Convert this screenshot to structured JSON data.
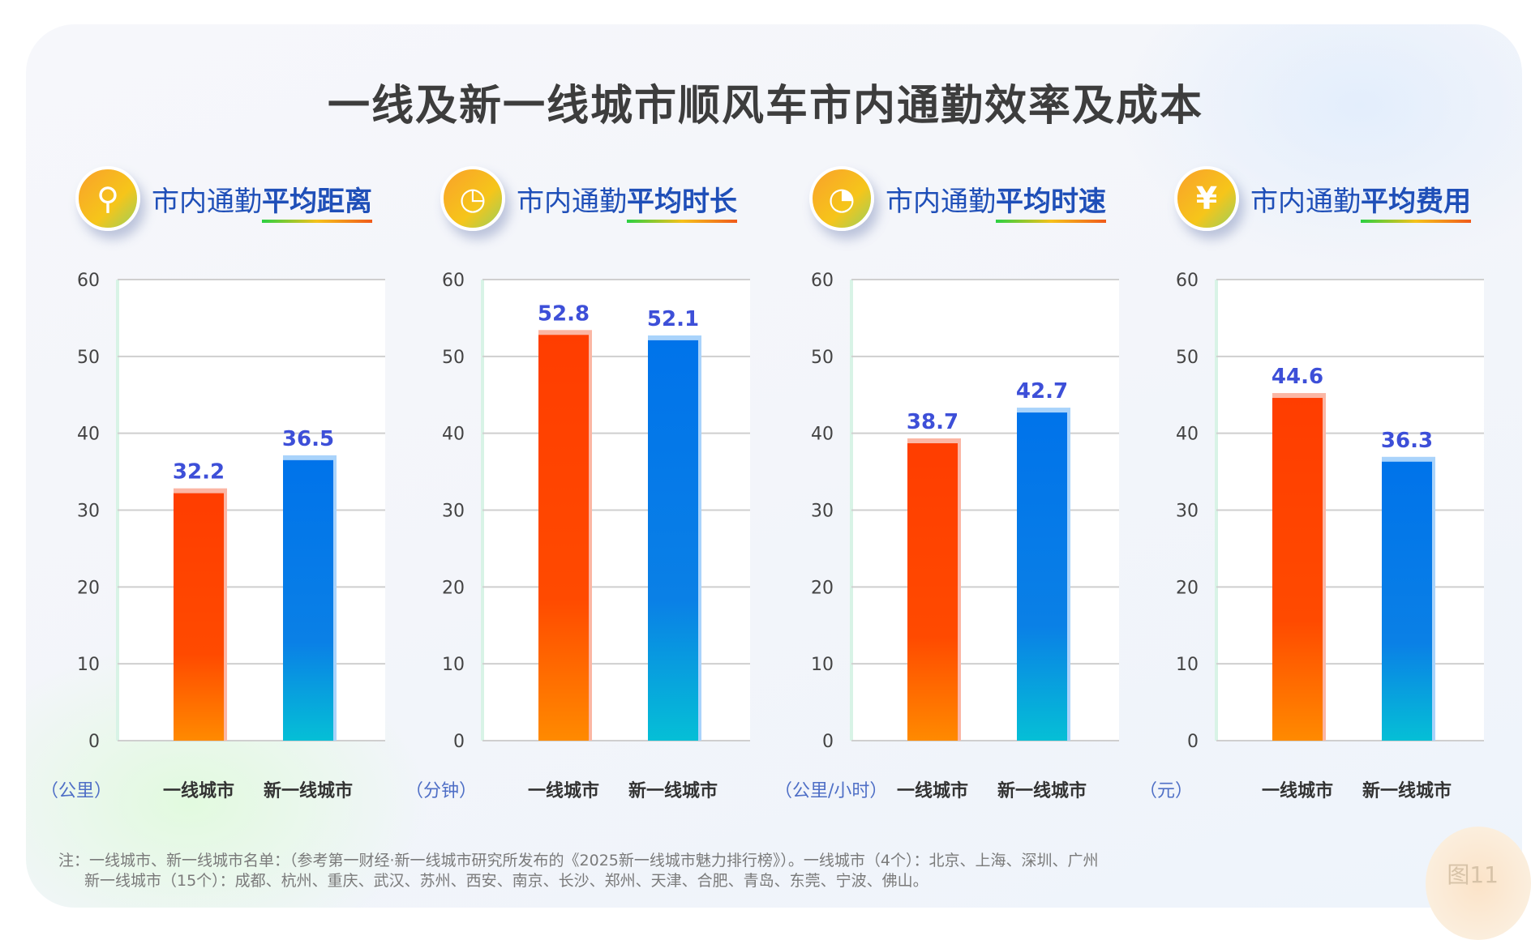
{
  "title": "一线及新一线城市顺风车市内通勤效率及成本",
  "categories": [
    "一线城市",
    "新一线城市"
  ],
  "colors": {
    "first_tier": "#ff3d00",
    "new_first_tier": "#0073ea",
    "label": "#3d4fd8"
  },
  "chart_data": [
    {
      "type": "bar",
      "title_prefix": "市内通勤",
      "title_bold": "平均距离",
      "icon": "route-pin-icon",
      "unit": "（公里）",
      "categories": [
        "一线城市",
        "新一线城市"
      ],
      "values": [
        32.2,
        36.5
      ],
      "labels": [
        "32.2",
        "36.5"
      ],
      "ylim": [
        0,
        60
      ],
      "yticks": [
        "0",
        "10",
        "20",
        "30",
        "40",
        "50",
        "60"
      ]
    },
    {
      "type": "bar",
      "title_prefix": "市内通勤",
      "title_bold": "平均时长",
      "icon": "clock-icon",
      "unit": "（分钟）",
      "categories": [
        "一线城市",
        "新一线城市"
      ],
      "values": [
        52.8,
        52.1
      ],
      "labels": [
        "52.8",
        "52.1"
      ],
      "ylim": [
        0,
        60
      ],
      "yticks": [
        "0",
        "10",
        "20",
        "30",
        "40",
        "50",
        "60"
      ]
    },
    {
      "type": "bar",
      "title_prefix": "市内通勤",
      "title_bold": "平均时速",
      "icon": "speedometer-icon",
      "unit": "（公里/小时）",
      "categories": [
        "一线城市",
        "新一线城市"
      ],
      "values": [
        38.7,
        42.7
      ],
      "labels": [
        "38.7",
        "42.7"
      ],
      "ylim": [
        0,
        60
      ],
      "yticks": [
        "0",
        "10",
        "20",
        "30",
        "40",
        "50",
        "60"
      ]
    },
    {
      "type": "bar",
      "title_prefix": "市内通勤",
      "title_bold": "平均费用",
      "icon": "yuan-coin-icon",
      "unit": "（元）",
      "categories": [
        "一线城市",
        "新一线城市"
      ],
      "values": [
        44.6,
        36.3
      ],
      "labels": [
        "44.6",
        "36.3"
      ],
      "ylim": [
        0,
        60
      ],
      "yticks": [
        "0",
        "10",
        "20",
        "30",
        "40",
        "50",
        "60"
      ]
    }
  ],
  "note": [
    "注：一线城市、新一线城市名单：（参考第一财经·新一线城市研究所发布的《2025新一线城市魅力排行榜》）。一线城市（4个）：北京、上海、深圳、广州",
    "新一线城市（15个）：成都、杭州、重庆、武汉、苏州、西安、南京、长沙、郑州、天津、合肥、青岛、东莞、宁波、佛山。"
  ],
  "figure_label": "图11"
}
